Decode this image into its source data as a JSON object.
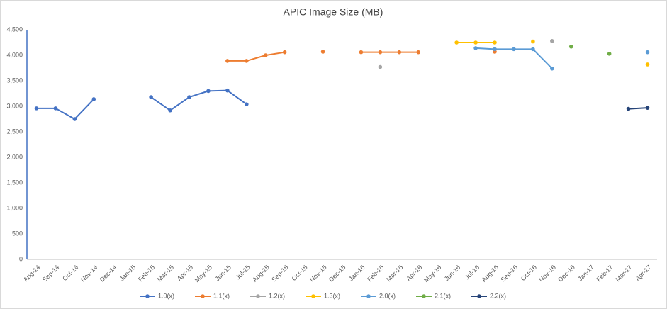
{
  "chart_data": {
    "type": "line",
    "title": "APIC Image Size (MB)",
    "categories": [
      "Aug-14",
      "Sep-14",
      "Oct-14",
      "Nov-14",
      "Dec-14",
      "Jan-15",
      "Feb-15",
      "Mar-15",
      "Apr-15",
      "May-15",
      "Jun-15",
      "Jul-15",
      "Aug-15",
      "Sep-15",
      "Oct-15",
      "Nov-15",
      "Dec-15",
      "Jan-16",
      "Feb-16",
      "Mar-16",
      "Apr-16",
      "May-16",
      "Jun-16",
      "Jul-16",
      "Aug-16",
      "Sep-16",
      "Oct-16",
      "Nov-16",
      "Dec-16",
      "Jan-17",
      "Feb-17",
      "Mar-17",
      "Apr-17"
    ],
    "series": [
      {
        "name": "1.0(x)",
        "color": "#4472c4",
        "values": [
          2960,
          2960,
          2750,
          3140,
          null,
          null,
          3180,
          2920,
          3180,
          3300,
          3310,
          3040,
          null,
          null,
          null,
          null,
          null,
          null,
          null,
          null,
          null,
          null,
          null,
          null,
          null,
          null,
          null,
          null,
          null,
          null,
          null,
          null,
          null
        ]
      },
      {
        "name": "1.1(x)",
        "color": "#ed7d31",
        "values": [
          null,
          null,
          null,
          null,
          null,
          null,
          null,
          null,
          null,
          null,
          3890,
          3890,
          4000,
          4060,
          null,
          4070,
          null,
          4060,
          4060,
          4060,
          4060,
          null,
          null,
          null,
          4070,
          null,
          null,
          null,
          null,
          null,
          null,
          null,
          null
        ]
      },
      {
        "name": "1.2(x)",
        "color": "#a5a5a5",
        "values": [
          null,
          null,
          null,
          null,
          null,
          null,
          null,
          null,
          null,
          null,
          null,
          null,
          null,
          null,
          null,
          null,
          null,
          null,
          3770,
          null,
          null,
          null,
          null,
          null,
          null,
          null,
          null,
          4280,
          null,
          null,
          null,
          null,
          null
        ]
      },
      {
        "name": "1.3(x)",
        "color": "#ffc000",
        "values": [
          null,
          null,
          null,
          null,
          null,
          null,
          null,
          null,
          null,
          null,
          null,
          null,
          null,
          null,
          null,
          null,
          null,
          null,
          null,
          null,
          null,
          null,
          4250,
          4250,
          4250,
          null,
          4270,
          null,
          null,
          null,
          null,
          null,
          3820
        ]
      },
      {
        "name": "2.0(x)",
        "color": "#5b9bd5",
        "values": [
          null,
          null,
          null,
          null,
          null,
          null,
          null,
          null,
          null,
          null,
          null,
          null,
          null,
          null,
          null,
          null,
          null,
          null,
          null,
          null,
          null,
          null,
          null,
          4140,
          4120,
          4120,
          4120,
          3740,
          null,
          null,
          null,
          null,
          4060
        ]
      },
      {
        "name": "2.1(x)",
        "color": "#70ad47",
        "values": [
          null,
          null,
          null,
          null,
          null,
          null,
          null,
          null,
          null,
          null,
          null,
          null,
          null,
          null,
          null,
          null,
          null,
          null,
          null,
          null,
          null,
          null,
          null,
          null,
          null,
          null,
          null,
          null,
          4170,
          null,
          4030,
          null,
          null
        ]
      },
      {
        "name": "2.2(x)",
        "color": "#264478",
        "values": [
          null,
          null,
          null,
          null,
          null,
          null,
          null,
          null,
          null,
          null,
          null,
          null,
          null,
          null,
          null,
          null,
          null,
          null,
          null,
          null,
          null,
          null,
          null,
          null,
          null,
          null,
          null,
          null,
          null,
          null,
          null,
          2950,
          2970
        ]
      }
    ],
    "ylim": [
      0,
      4500
    ],
    "yticks": [
      0,
      500,
      {
        "value": 1000,
        "label": "1,000"
      },
      {
        "value": 1500,
        "label": "1,500"
      },
      {
        "value": 2000,
        "label": "2,000"
      },
      {
        "value": 2500,
        "label": "2,500"
      },
      {
        "value": 3000,
        "label": "3,000"
      },
      {
        "value": 3500,
        "label": "3,500"
      },
      {
        "value": 4000,
        "label": "4,000"
      },
      {
        "value": 4500,
        "label": "4,500"
      }
    ],
    "grid": false,
    "legend": "bottom"
  }
}
